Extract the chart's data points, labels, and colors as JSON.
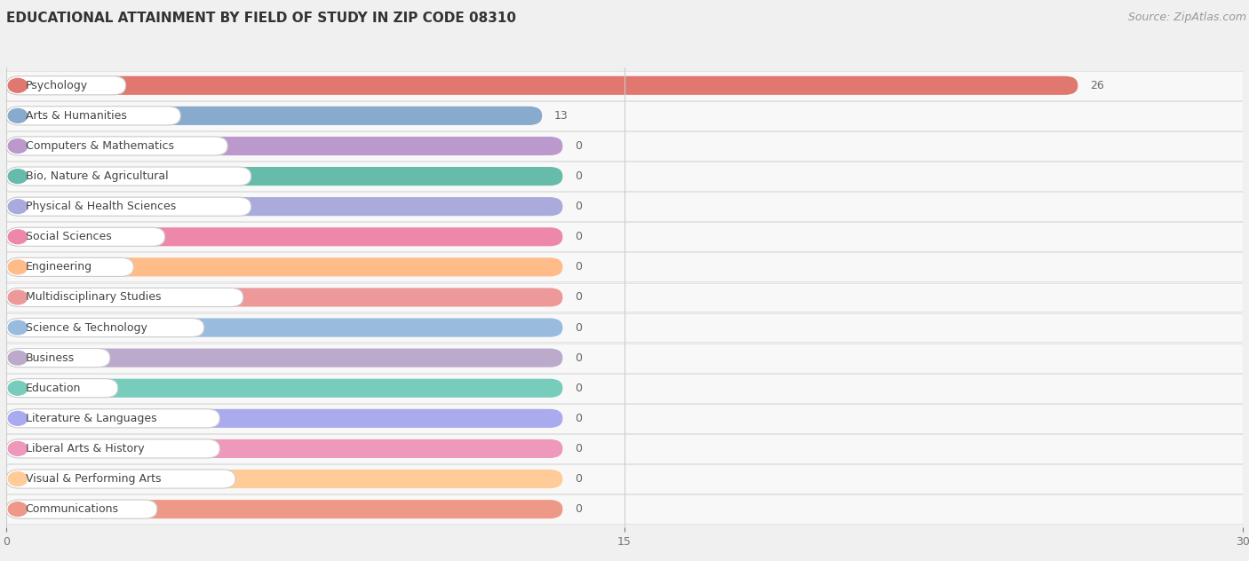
{
  "title": "EDUCATIONAL ATTAINMENT BY FIELD OF STUDY IN ZIP CODE 08310",
  "source": "Source: ZipAtlas.com",
  "categories": [
    "Psychology",
    "Arts & Humanities",
    "Computers & Mathematics",
    "Bio, Nature & Agricultural",
    "Physical & Health Sciences",
    "Social Sciences",
    "Engineering",
    "Multidisciplinary Studies",
    "Science & Technology",
    "Business",
    "Education",
    "Literature & Languages",
    "Liberal Arts & History",
    "Visual & Performing Arts",
    "Communications"
  ],
  "values": [
    26,
    13,
    0,
    0,
    0,
    0,
    0,
    0,
    0,
    0,
    0,
    0,
    0,
    0,
    0
  ],
  "bar_colors": [
    "#E07870",
    "#88AACC",
    "#BB99CC",
    "#66BBAA",
    "#AAAADD",
    "#EE88AA",
    "#FFBB88",
    "#EE9999",
    "#99BBDD",
    "#BBAACC",
    "#77CCBB",
    "#AAAAEE",
    "#EE99BB",
    "#FFCC99",
    "#EE9988"
  ],
  "zero_bar_width": 13.5,
  "xlim": [
    0,
    30
  ],
  "xticks": [
    0,
    15,
    30
  ],
  "background_color": "#f0f0f0",
  "row_bg_color": "#f8f8f8",
  "title_fontsize": 11,
  "source_fontsize": 9,
  "label_fontsize": 9,
  "value_fontsize": 9
}
